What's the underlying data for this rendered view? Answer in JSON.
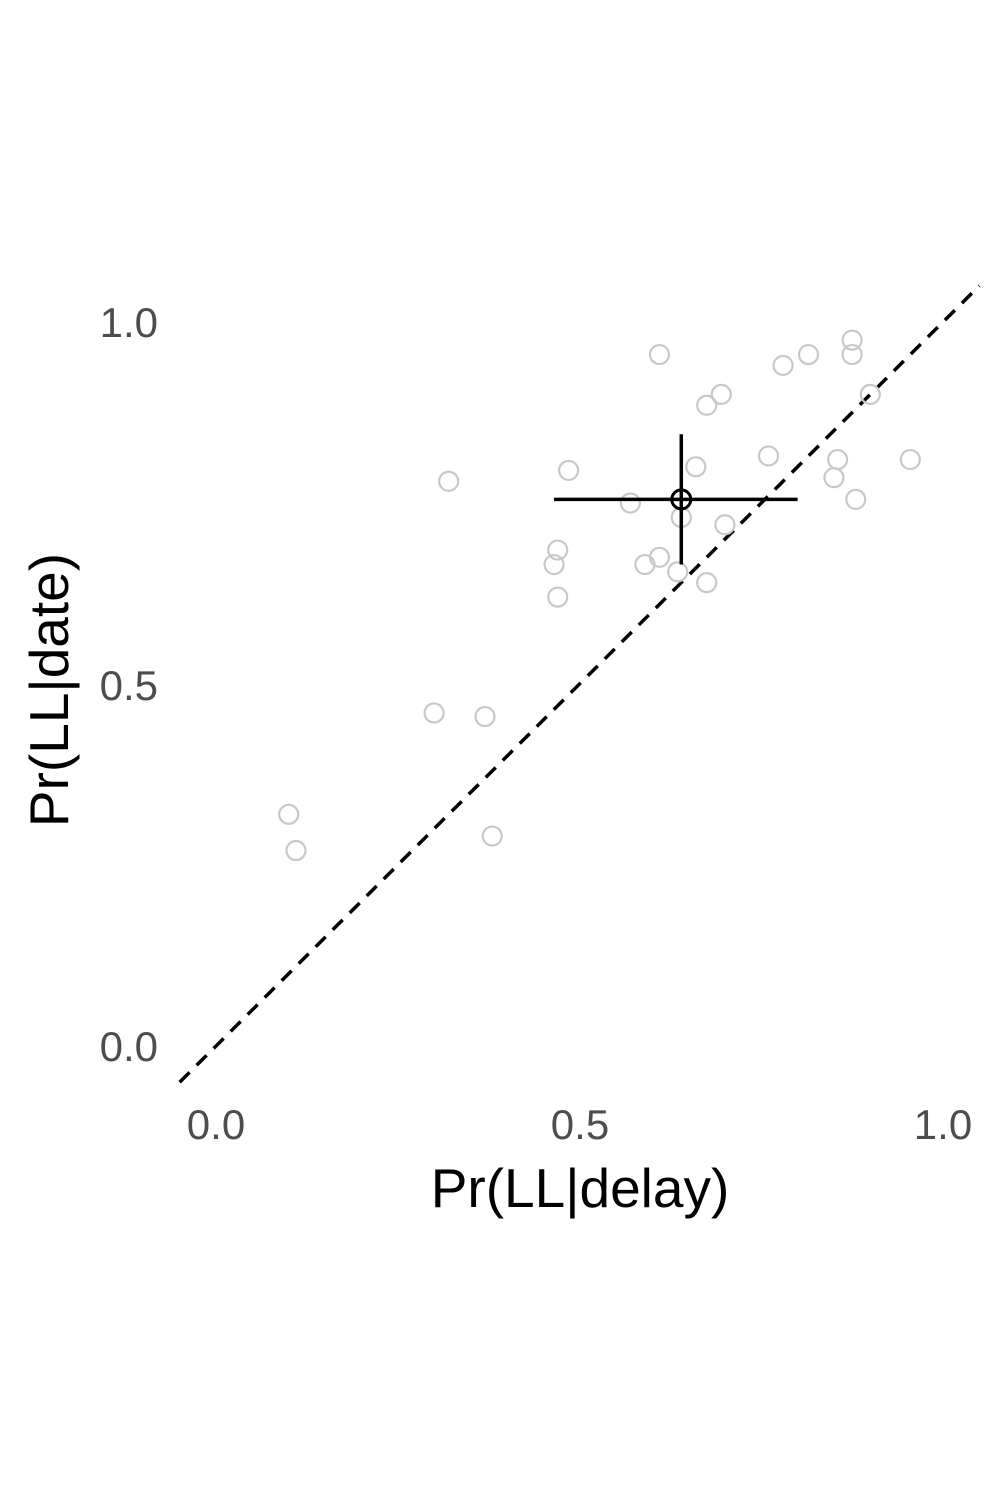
{
  "chart_data": {
    "type": "scatter",
    "title": "",
    "xlabel": "Pr(LL|delay)",
    "ylabel": "Pr(LL|date)",
    "xlim": [
      -0.05,
      1.05
    ],
    "ylim": [
      -0.05,
      1.05
    ],
    "x_ticks": [
      0.0,
      0.5,
      1.0
    ],
    "x_tick_labels": [
      "0.0",
      "0.5",
      "1.0"
    ],
    "y_ticks": [
      0.0,
      0.5,
      1.0
    ],
    "y_tick_labels": [
      "0.0",
      "0.5",
      "1.0"
    ],
    "grid": false,
    "identity_line": true,
    "colors": {
      "points": "#c8c8c8",
      "summary": "#000000",
      "reference_line": "#000000",
      "tick_labels": "#4d4d4d"
    },
    "points": [
      {
        "x": 0.1,
        "y": 0.32
      },
      {
        "x": 0.11,
        "y": 0.27
      },
      {
        "x": 0.3,
        "y": 0.46
      },
      {
        "x": 0.32,
        "y": 0.78
      },
      {
        "x": 0.37,
        "y": 0.455
      },
      {
        "x": 0.38,
        "y": 0.29
      },
      {
        "x": 0.465,
        "y": 0.665
      },
      {
        "x": 0.47,
        "y": 0.685
      },
      {
        "x": 0.47,
        "y": 0.62
      },
      {
        "x": 0.485,
        "y": 0.795
      },
      {
        "x": 0.57,
        "y": 0.75
      },
      {
        "x": 0.59,
        "y": 0.665
      },
      {
        "x": 0.61,
        "y": 0.675
      },
      {
        "x": 0.61,
        "y": 0.955
      },
      {
        "x": 0.635,
        "y": 0.655
      },
      {
        "x": 0.64,
        "y": 0.73
      },
      {
        "x": 0.66,
        "y": 0.8
      },
      {
        "x": 0.675,
        "y": 0.64
      },
      {
        "x": 0.675,
        "y": 0.885
      },
      {
        "x": 0.695,
        "y": 0.9
      },
      {
        "x": 0.7,
        "y": 0.72
      },
      {
        "x": 0.76,
        "y": 0.815
      },
      {
        "x": 0.78,
        "y": 0.94
      },
      {
        "x": 0.815,
        "y": 0.955
      },
      {
        "x": 0.85,
        "y": 0.785
      },
      {
        "x": 0.855,
        "y": 0.81
      },
      {
        "x": 0.875,
        "y": 0.975
      },
      {
        "x": 0.875,
        "y": 0.955
      },
      {
        "x": 0.88,
        "y": 0.755
      },
      {
        "x": 0.9,
        "y": 0.9
      },
      {
        "x": 0.955,
        "y": 0.81
      }
    ],
    "summary": {
      "x": 0.64,
      "y": 0.755,
      "x_range": [
        0.465,
        0.8
      ],
      "y_range": [
        0.665,
        0.845
      ]
    }
  }
}
